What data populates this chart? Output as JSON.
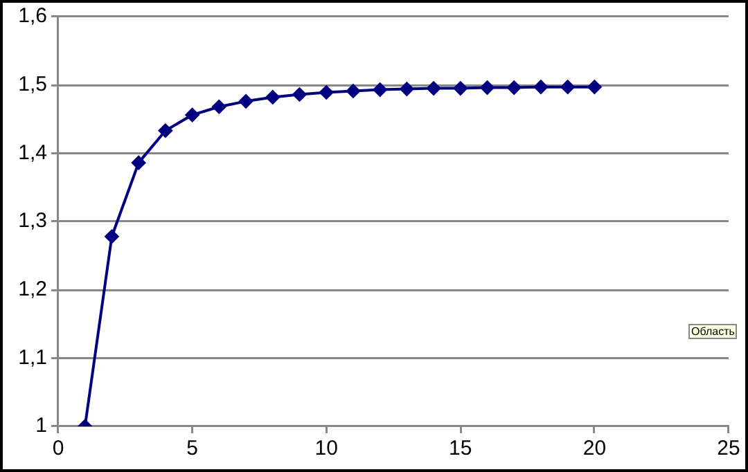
{
  "chart_data": {
    "type": "line",
    "x": [
      1,
      2,
      3,
      4,
      5,
      6,
      7,
      8,
      9,
      10,
      11,
      12,
      13,
      14,
      15,
      16,
      17,
      18,
      19,
      20
    ],
    "series": [
      {
        "color": "#000080",
        "values": [
          1,
          1.278,
          1.386,
          1.433,
          1.456,
          1.468,
          1.476,
          1.482,
          1.486,
          1.489,
          1.491,
          1.493,
          1.494,
          1.495,
          1.495,
          1.496,
          1.496,
          1.497,
          1.497,
          1.497
        ]
      }
    ],
    "xlim": [
      0,
      25
    ],
    "xticks": [
      0,
      5,
      10,
      15,
      20,
      25
    ],
    "ylim": [
      1,
      1.6
    ],
    "yticks": [
      1,
      {
        "value": 1.1,
        "label": "1,1"
      },
      {
        "value": 1.2,
        "label": "1,2"
      },
      {
        "value": 1.3,
        "label": "1,3"
      },
      {
        "value": 1.4,
        "label": "1,4"
      },
      {
        "value": 1.5,
        "label": "1,5"
      },
      {
        "value": 1.6,
        "label": "1,6"
      }
    ],
    "grid": "y",
    "legend": false,
    "marker": "diamond",
    "line_style": "solid",
    "annotations": [
      "Область"
    ]
  }
}
